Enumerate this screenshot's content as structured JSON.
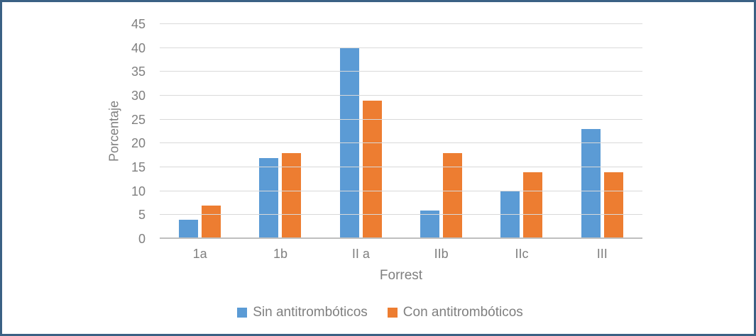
{
  "frame": {
    "border_color": "#3a6184",
    "background_color": "#ffffff"
  },
  "style": {
    "gridline_color": "#d9d9d9",
    "axis_line_color": "#bfbfbf",
    "text_color": "#7f7f7f"
  },
  "chart_data": {
    "type": "bar",
    "title": "",
    "categories": [
      "1a",
      "1b",
      "II a",
      "IIb",
      "IIc",
      "III"
    ],
    "series": [
      {
        "name": "Sin antitrombóticos",
        "color": "#5B9BD5",
        "values": [
          4,
          17,
          40,
          6,
          10,
          23
        ]
      },
      {
        "name": "Con antitrombóticos",
        "color": "#ED7D31",
        "values": [
          7,
          18,
          29,
          18,
          14,
          14
        ]
      }
    ],
    "xlabel": "Forrest",
    "ylabel": "Porcentaje",
    "ylim": [
      0,
      45
    ],
    "yticks": [
      0,
      5,
      10,
      15,
      20,
      25,
      30,
      35,
      40,
      45
    ],
    "grid": true,
    "legend_position": "bottom"
  }
}
